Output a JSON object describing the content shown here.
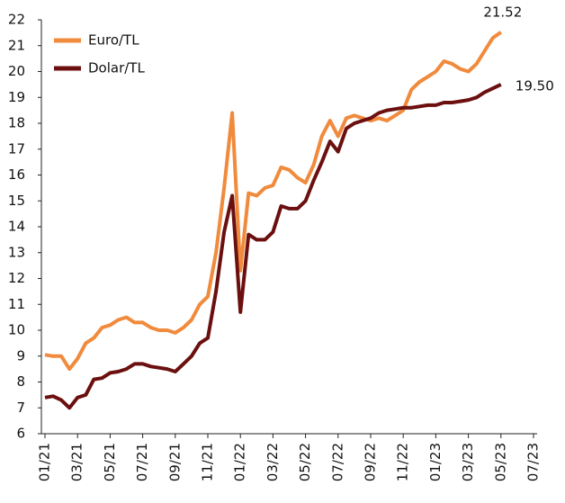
{
  "chart_data": {
    "type": "line",
    "categories": [
      "01/21",
      null,
      null,
      null,
      "03/21",
      null,
      null,
      null,
      "05/21",
      null,
      null,
      null,
      "07/21",
      null,
      null,
      null,
      "09/21",
      null,
      null,
      null,
      "11/21",
      null,
      null,
      null,
      "01/22",
      null,
      null,
      null,
      "03/22",
      null,
      null,
      null,
      "05/22",
      null,
      null,
      null,
      "07/22",
      null,
      null,
      null,
      "09/22",
      null,
      null,
      null,
      "11/22",
      null,
      null,
      null,
      "01/23",
      null,
      null,
      null,
      "03/23",
      null,
      null,
      null,
      "05/23",
      null,
      null,
      null,
      "07/23"
    ],
    "series": [
      {
        "name": "Euro/TL",
        "color": "#f08a3c",
        "values": [
          9.05,
          9.0,
          9.0,
          8.5,
          8.9,
          9.5,
          9.7,
          10.1,
          10.2,
          10.4,
          10.5,
          10.3,
          10.3,
          10.1,
          10.0,
          10.0,
          9.9,
          10.1,
          10.4,
          11.0,
          11.3,
          13.0,
          15.5,
          18.4,
          12.3,
          15.3,
          15.2,
          15.5,
          15.6,
          16.3,
          16.2,
          15.9,
          15.7,
          16.4,
          17.5,
          18.1,
          17.5,
          18.2,
          18.3,
          18.2,
          18.1,
          18.2,
          18.1,
          18.3,
          18.5,
          19.3,
          19.6,
          19.8,
          20.0,
          20.4,
          20.3,
          20.1,
          20.0,
          20.3,
          20.8,
          21.3,
          21.52,
          null,
          null,
          null,
          null
        ]
      },
      {
        "name": "Dolar/TL",
        "color": "#6b0f0f",
        "values": [
          7.4,
          7.45,
          7.3,
          7.0,
          7.4,
          7.5,
          8.1,
          8.15,
          8.35,
          8.4,
          8.5,
          8.7,
          8.7,
          8.6,
          8.55,
          8.5,
          8.4,
          8.7,
          9.0,
          9.5,
          9.7,
          11.5,
          13.8,
          15.2,
          10.7,
          13.7,
          13.5,
          13.5,
          13.8,
          14.8,
          14.7,
          14.7,
          15.0,
          15.8,
          16.5,
          17.3,
          16.9,
          17.8,
          18.0,
          18.1,
          18.2,
          18.4,
          18.5,
          18.55,
          18.6,
          18.6,
          18.65,
          18.7,
          18.7,
          18.8,
          18.8,
          18.85,
          18.9,
          19.0,
          19.2,
          19.35,
          19.5,
          null,
          null,
          null,
          null
        ],
        "value_labels": [
          null,
          null,
          null,
          null,
          null,
          null,
          null,
          null,
          null,
          null,
          null,
          null,
          null,
          null,
          null,
          null,
          null,
          null,
          null,
          null,
          null,
          null,
          null,
          null,
          null,
          null,
          null,
          null,
          null,
          null,
          null,
          null,
          null,
          null,
          null,
          null,
          null,
          null,
          null,
          null,
          null,
          null,
          null,
          null,
          null,
          null,
          null,
          null,
          null,
          null,
          null,
          null,
          null,
          null,
          null,
          null,
          "19.50",
          null,
          null,
          null,
          null
        ]
      }
    ],
    "ylim": [
      6,
      22
    ],
    "yticks": [
      6,
      7,
      8,
      9,
      10,
      11,
      12,
      13,
      14,
      15,
      16,
      17,
      18,
      19,
      20,
      21,
      22
    ],
    "grid": false,
    "legend": "upper left"
  }
}
